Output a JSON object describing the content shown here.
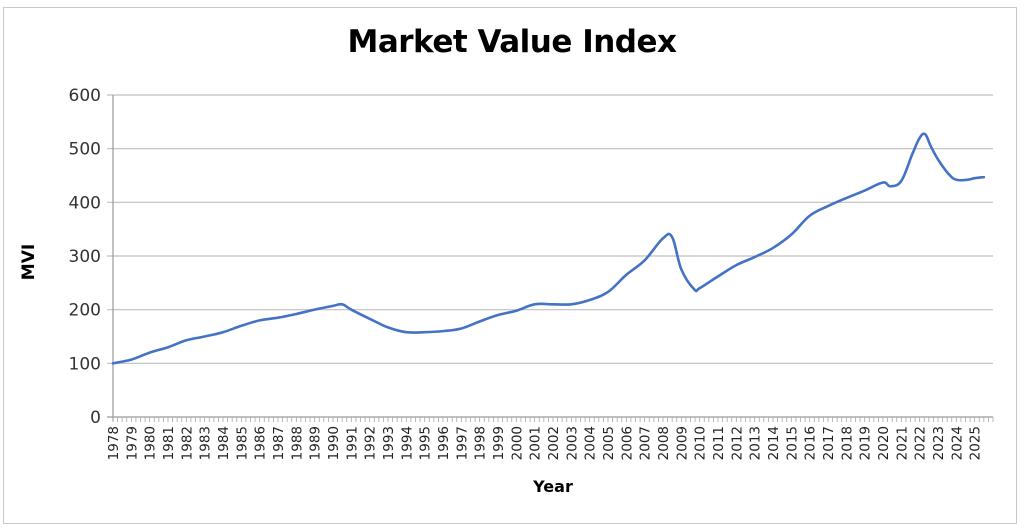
{
  "chart_data": {
    "type": "line",
    "title": "Market Value Index",
    "xlabel": "Year",
    "ylabel": "MVI",
    "ylim": [
      0,
      600
    ],
    "yticks": [
      0,
      100,
      200,
      300,
      400,
      500,
      600
    ],
    "grid": true,
    "legend": "none",
    "line_color": "#4472C4",
    "categories": [
      "1978",
      "1979",
      "1980",
      "1981",
      "1982",
      "1983",
      "1984",
      "1985",
      "1986",
      "1987",
      "1988",
      "1989",
      "1990",
      "1991",
      "1992",
      "1993",
      "1994",
      "1995",
      "1996",
      "1997",
      "1998",
      "1999",
      "2000",
      "2001",
      "2002",
      "2003",
      "2004",
      "2005",
      "2006",
      "2007",
      "2008",
      "2009",
      "2010",
      "2011",
      "2012",
      "2013",
      "2014",
      "2015",
      "2016",
      "2017",
      "2018",
      "2019",
      "2020",
      "2021",
      "2022",
      "2023",
      "2024",
      "2025"
    ],
    "series": [
      {
        "name": "MVI",
        "x": [
          1978,
          1979,
          1980,
          1981,
          1982,
          1983,
          1984,
          1985,
          1986,
          1987,
          1988,
          1989,
          1990,
          1990.5,
          1991,
          1992,
          1993,
          1994,
          1995,
          1996,
          1997,
          1998,
          1999,
          2000,
          2001,
          2002,
          2003,
          2004,
          2005,
          2006,
          2007,
          2008,
          2008.5,
          2009,
          2009.7,
          2010,
          2011,
          2012,
          2013,
          2014,
          2015,
          2016,
          2017,
          2018,
          2019,
          2020,
          2020.4,
          2021,
          2021.6,
          2022,
          2022.3,
          2022.6,
          2023,
          2023.6,
          2024,
          2024.6,
          2025,
          2025.5
        ],
        "values": [
          100,
          107,
          120,
          130,
          143,
          150,
          158,
          170,
          180,
          185,
          192,
          200,
          207,
          210,
          200,
          183,
          167,
          158,
          158,
          160,
          165,
          178,
          190,
          198,
          210,
          210,
          210,
          218,
          233,
          265,
          292,
          333,
          335,
          275,
          238,
          240,
          262,
          283,
          298,
          315,
          340,
          375,
          393,
          408,
          422,
          437,
          430,
          440,
          490,
          520,
          527,
          505,
          480,
          452,
          442,
          442,
          445,
          447
        ]
      }
    ]
  }
}
